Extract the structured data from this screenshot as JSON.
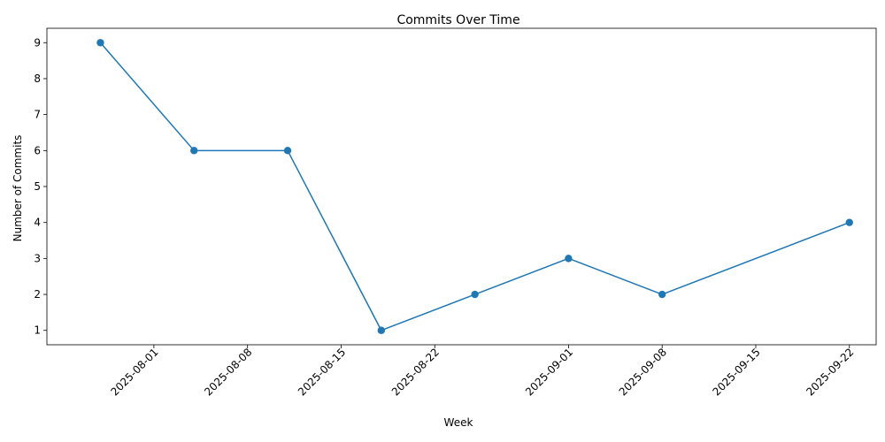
{
  "chart_data": {
    "type": "line",
    "title": "Commits Over Time",
    "xlabel": "Week",
    "ylabel": "Number of Commits",
    "x_axis_type": "date",
    "xlim": [
      "2025-07-24",
      "2025-09-24"
    ],
    "ylim": [
      0.6,
      9.4
    ],
    "x_ticks": [
      "2025-08-01",
      "2025-08-08",
      "2025-08-15",
      "2025-08-22",
      "2025-09-01",
      "2025-09-08",
      "2025-09-15",
      "2025-09-22"
    ],
    "y_ticks": [
      1,
      2,
      3,
      4,
      5,
      6,
      7,
      8,
      9
    ],
    "x_tick_rotation": 45,
    "grid": false,
    "legend": "none",
    "series": [
      {
        "color": "#1f77b4",
        "marker": "circle",
        "points": [
          {
            "x": "2025-07-28",
            "y": 9
          },
          {
            "x": "2025-08-04",
            "y": 6
          },
          {
            "x": "2025-08-11",
            "y": 6
          },
          {
            "x": "2025-08-18",
            "y": 1
          },
          {
            "x": "2025-08-25",
            "y": 2
          },
          {
            "x": "2025-09-01",
            "y": 3
          },
          {
            "x": "2025-09-08",
            "y": 2
          },
          {
            "x": "2025-09-22",
            "y": 4
          }
        ]
      }
    ]
  }
}
